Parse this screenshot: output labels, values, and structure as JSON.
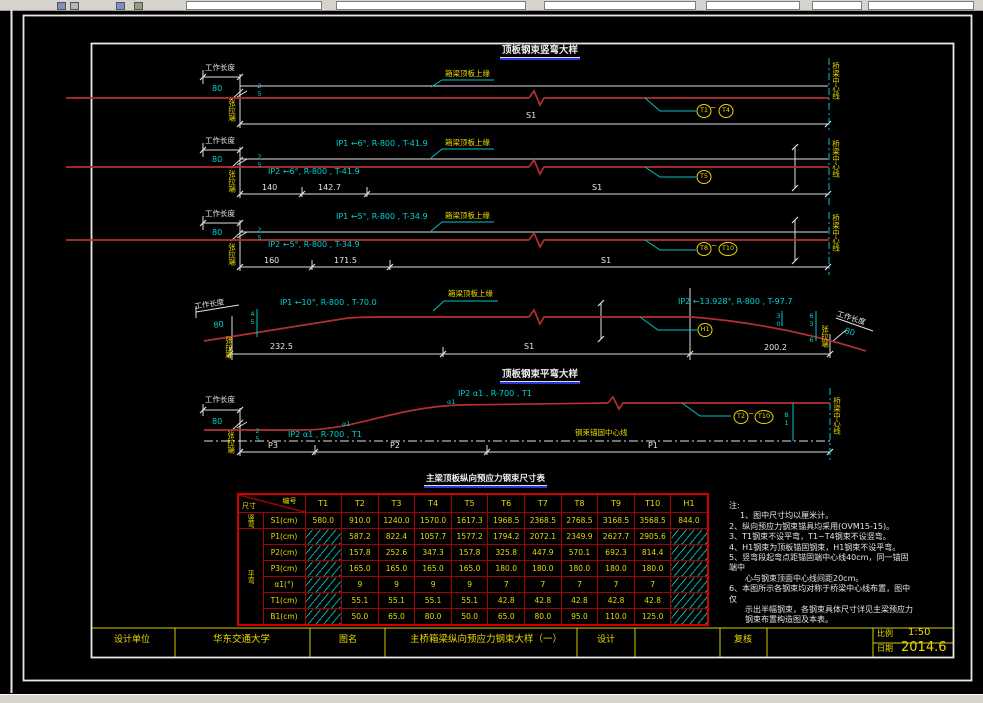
{
  "labels": {
    "work_length": "工作长度",
    "work_length_value": "80",
    "tension_end": "张拉端",
    "bridge_centerline": "桥梁中心线",
    "slab_top_edge": "箱梁顶板上缘",
    "span_s1": "S1",
    "tilde": "~",
    "offset_25": "25",
    "offset_45": "45",
    "offset_636": "63.6",
    "offset_30": "30",
    "b1": "B1",
    "alpha1": "α1",
    "anchor_centerline": "钢束锚固中心线"
  },
  "sections": {
    "sec1": {
      "title": "顶板钢束竖弯大样",
      "tendon_from": "T1",
      "tendon_to": "T4"
    },
    "sec2": {
      "ip1": "IP1 ←6°, R-800 , T-41.9",
      "ip2": "IP2 ←6°, R-800 , T-41.9",
      "dim1": "140",
      "dim2": "142.7",
      "tendon": "T5"
    },
    "sec3": {
      "ip1": "IP1 ←5°, R-800 , T-34.9",
      "ip2": "IP2 ←5°, R-800 , T-34.9",
      "dim1": "160",
      "dim2": "171.5",
      "tendon_from": "T8",
      "tendon_to": "T10"
    },
    "sec4": {
      "ip1": "IP1 ←10°, R-800 , T-70.0",
      "ip2": "IP2 ←13.928°, R-800 , T-97.7",
      "dim1": "232.5",
      "dim2": "S1",
      "dim3": "200.2",
      "tendon": "H1"
    },
    "sec5": {
      "title": "顶板钢束平弯大样",
      "ip_upper": "IP2 α1 , R-700 , T1",
      "ip_lower": "IP2 α1 , R-700 , T1",
      "dim1": "P3",
      "dim2": "P2",
      "dim3": "P1",
      "tendon_from": "T2",
      "tendon_to": "T10"
    }
  },
  "table": {
    "title": "主梁顶板纵向预应力钢束尺寸表",
    "corner_top": "编号",
    "corner_bottom": "尺寸",
    "group1": "竖弯",
    "group2": "平弯",
    "columns": [
      "T1",
      "T2",
      "T3",
      "T4",
      "T5",
      "T6",
      "T7",
      "T8",
      "T9",
      "T10",
      "H1"
    ],
    "rows": [
      {
        "label": "S1(cm)",
        "values": [
          "580.0",
          "910.0",
          "1240.0",
          "1570.0",
          "1617.3",
          "1968.5",
          "2368.5",
          "2768.5",
          "3168.5",
          "3568.5",
          "844.0"
        ]
      },
      {
        "label": "P1(cm)",
        "values": [
          "",
          "587.2",
          "822.4",
          "1057.7",
          "1577.2",
          "1794.2",
          "2072.1",
          "2349.9",
          "2627.7",
          "2905.6",
          ""
        ]
      },
      {
        "label": "P2(cm)",
        "values": [
          "",
          "157.8",
          "252.6",
          "347.3",
          "157.8",
          "325.8",
          "447.9",
          "570.1",
          "692.3",
          "814.4",
          ""
        ]
      },
      {
        "label": "P3(cm)",
        "values": [
          "",
          "165.0",
          "165.0",
          "165.0",
          "165.0",
          "180.0",
          "180.0",
          "180.0",
          "180.0",
          "180.0",
          ""
        ]
      },
      {
        "label": "α1(°)",
        "values": [
          "",
          "9",
          "9",
          "9",
          "9",
          "7",
          "7",
          "7",
          "7",
          "7",
          ""
        ]
      },
      {
        "label": "T1(cm)",
        "values": [
          "",
          "55.1",
          "55.1",
          "55.1",
          "55.1",
          "42.8",
          "42.8",
          "42.8",
          "42.8",
          "42.8",
          ""
        ]
      },
      {
        "label": "B1(cm)",
        "values": [
          "",
          "50.0",
          "65.0",
          "80.0",
          "50.0",
          "65.0",
          "80.0",
          "95.0",
          "110.0",
          "125.0",
          ""
        ]
      }
    ]
  },
  "notes": {
    "heading": "注:",
    "lines": [
      "1、图中尺寸均以厘米计。",
      "2、纵向预应力钢束锚具均采用(OVM15-15)。",
      "3、T1钢束不设平弯，T1~T4钢束不设竖弯。",
      "4、H1钢束为顶板锚固钢束，H1钢束不设平弯。",
      "5、竖弯段起弯点距锚固端中心线40cm，同一锚固端中",
      "　　心与钢束顶面中心线间距20cm。",
      "6、本图所示各钢束均对称于桥梁中心线布置，图中仅",
      "　　示出半幅钢束，各钢束具体尺寸详见主梁预应力",
      "　　钢束布置构造图及本表。"
    ]
  },
  "titleblock": {
    "design_unit_label": "设计单位",
    "design_unit": "华东交通大学",
    "drawing_name_label": "图名",
    "drawing_name": "主桥箱梁纵向预应力钢束大样（一）",
    "design_label": "设计",
    "check_label": "复核",
    "scale_label": "比例",
    "scale_value": "1:50",
    "date_label": "日期",
    "date_value": "2014.6"
  }
}
